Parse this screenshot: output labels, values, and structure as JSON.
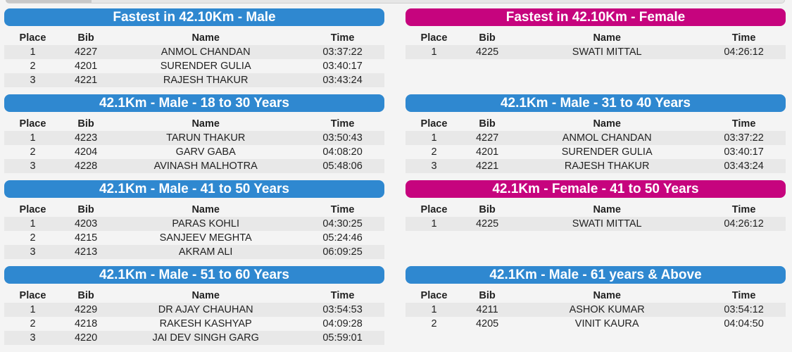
{
  "columns": [
    "Place",
    "Bib",
    "Name",
    "Time"
  ],
  "categories": [
    {
      "title": "Fastest in 42.10Km - Male",
      "gender": "male",
      "rows": [
        [
          "1",
          "4227",
          "ANMOL CHANDAN",
          "03:37:22"
        ],
        [
          "2",
          "4201",
          "SURENDER GULIA",
          "03:40:17"
        ],
        [
          "3",
          "4221",
          "RAJESH THAKUR",
          "03:43:24"
        ]
      ]
    },
    {
      "title": "Fastest in 42.10Km - Female",
      "gender": "female",
      "rows": [
        [
          "1",
          "4225",
          "SWATI MITTAL",
          "04:26:12"
        ]
      ]
    },
    {
      "title": "42.1Km - Male - 18 to 30 Years",
      "gender": "male",
      "rows": [
        [
          "1",
          "4223",
          "TARUN THAKUR",
          "03:50:43"
        ],
        [
          "2",
          "4204",
          "GARV GABA",
          "04:08:20"
        ],
        [
          "3",
          "4228",
          "AVINASH MALHOTRA",
          "05:48:06"
        ]
      ]
    },
    {
      "title": "42.1Km - Male - 31 to 40 Years",
      "gender": "male",
      "rows": [
        [
          "1",
          "4227",
          "ANMOL CHANDAN",
          "03:37:22"
        ],
        [
          "2",
          "4201",
          "SURENDER GULIA",
          "03:40:17"
        ],
        [
          "3",
          "4221",
          "RAJESH THAKUR",
          "03:43:24"
        ]
      ]
    },
    {
      "title": "42.1Km - Male - 41 to 50 Years",
      "gender": "male",
      "rows": [
        [
          "1",
          "4203",
          "PARAS KOHLI",
          "04:30:25"
        ],
        [
          "2",
          "4215",
          "SANJEEV MEGHTA",
          "05:24:46"
        ],
        [
          "3",
          "4213",
          "AKRAM ALI",
          "06:09:25"
        ]
      ]
    },
    {
      "title": "42.1Km - Female - 41 to 50 Years",
      "gender": "female",
      "rows": [
        [
          "1",
          "4225",
          "SWATI MITTAL",
          "04:26:12"
        ]
      ]
    },
    {
      "title": "42.1Km - Male - 51 to 60 Years",
      "gender": "male",
      "rows": [
        [
          "1",
          "4229",
          "DR AJAY CHAUHAN",
          "03:54:53"
        ],
        [
          "2",
          "4218",
          "RAKESH KASHYAP",
          "04:09:28"
        ],
        [
          "3",
          "4220",
          "JAI DEV SINGH GARG",
          "05:59:01"
        ]
      ]
    },
    {
      "title": "42.1Km - Male - 61 years & Above",
      "gender": "male",
      "rows": [
        [
          "1",
          "4211",
          "ASHOK KUMAR",
          "03:54:12"
        ],
        [
          "2",
          "4205",
          "VINIT KAURA",
          "04:04:50"
        ]
      ]
    }
  ],
  "colors": {
    "male_header": "#2f88d0",
    "female_header": "#c6047e",
    "row_stripe": "#e8e8e8"
  }
}
